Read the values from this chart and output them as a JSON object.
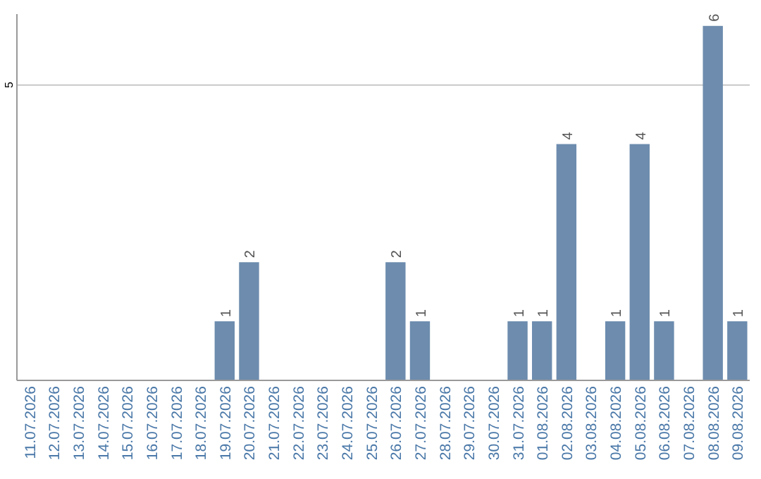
{
  "chart_data": {
    "type": "bar",
    "categories": [
      "11.07.2026",
      "12.07.2026",
      "13.07.2026",
      "14.07.2026",
      "15.07.2026",
      "16.07.2026",
      "17.07.2026",
      "18.07.2026",
      "19.07.2026",
      "20.07.2026",
      "21.07.2026",
      "22.07.2026",
      "23.07.2026",
      "24.07.2026",
      "25.07.2026",
      "26.07.2026",
      "27.07.2026",
      "28.07.2026",
      "29.07.2026",
      "30.07.2026",
      "31.07.2026",
      "01.08.2026",
      "02.08.2026",
      "03.08.2026",
      "04.08.2026",
      "05.08.2026",
      "06.08.2026",
      "07.08.2026",
      "08.08.2026",
      "09.08.2026"
    ],
    "values": [
      0,
      0,
      0,
      0,
      0,
      0,
      0,
      0,
      1,
      2,
      0,
      0,
      0,
      0,
      0,
      2,
      1,
      0,
      0,
      0,
      1,
      1,
      4,
      0,
      1,
      4,
      1,
      0,
      6,
      1
    ],
    "value_labels": [
      null,
      null,
      null,
      null,
      null,
      null,
      null,
      null,
      "1",
      "2",
      null,
      null,
      null,
      null,
      null,
      "2",
      "1",
      null,
      null,
      null,
      "1",
      "1",
      "4",
      null,
      "1",
      "4",
      "1",
      null,
      "6",
      "1"
    ],
    "color": "#6d8cae",
    "ylim": [
      0,
      6.2
    ],
    "yticks": [
      5
    ],
    "grid": "y"
  }
}
